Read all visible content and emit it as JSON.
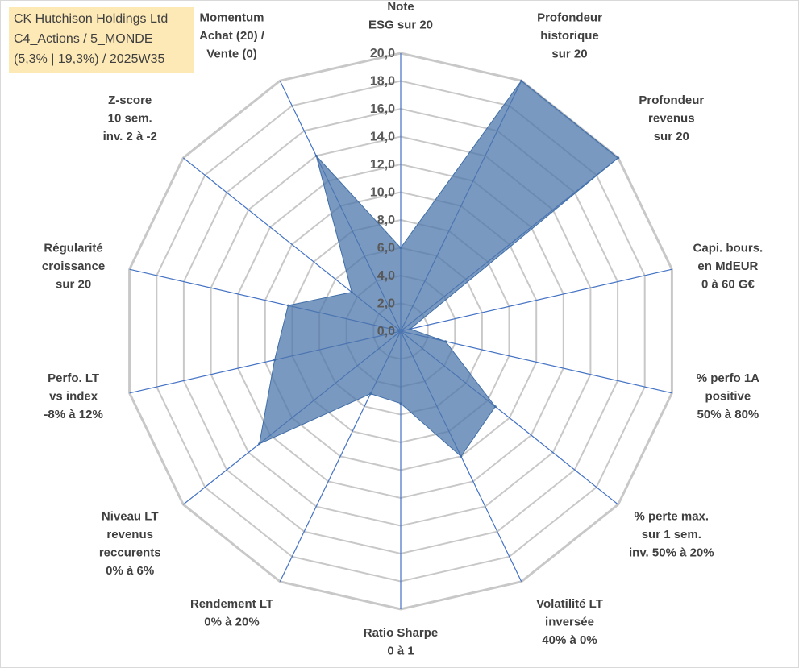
{
  "title": {
    "line1": "CK Hutchison Holdings Ltd",
    "line2": "C4_Actions / 5_MONDE",
    "line3": "(5,3% | 19,3%) / 2025W35"
  },
  "colors": {
    "fill": "#4e77ab",
    "fill_opacity": 0.75,
    "series_stroke": "#3f6ea8",
    "spoke": "#4472c4",
    "grid": "#c8c8c8",
    "title_bg": "#fde9b5"
  },
  "chart_data": {
    "type": "radar",
    "range": [
      0,
      20
    ],
    "tick_step": 2,
    "tick_labels": [
      "0,0",
      "2,0",
      "4,0",
      "6,0",
      "8,0",
      "10,0",
      "12,0",
      "14,0",
      "16,0",
      "18,0",
      "20,0"
    ],
    "axes": [
      {
        "label": [
          "Note",
          "ESG sur 20"
        ],
        "value": 6.0
      },
      {
        "label": [
          "Profondeur",
          "historique",
          "sur 20"
        ],
        "value": 20.0
      },
      {
        "label": [
          "Profondeur",
          "revenus",
          "sur 20"
        ],
        "value": 20.0
      },
      {
        "label": [
          "Capi. bours.",
          "en MdEUR",
          "0 à 60 G€"
        ],
        "value": 0.7
      },
      {
        "label": [
          "% perfo 1A",
          "positive",
          "50% à 80%"
        ],
        "value": 3.3
      },
      {
        "label": [
          "% perte max.",
          "sur 1 sem.",
          "inv. 50% à 20%"
        ],
        "value": 8.7
      },
      {
        "label": [
          "Volatilité LT",
          "inversée",
          "40% à 0%"
        ],
        "value": 10.0
      },
      {
        "label": [
          "Ratio Sharpe",
          "0 à 1"
        ],
        "value": 5.2
      },
      {
        "label": [
          "Rendement LT",
          "0% à 20%"
        ],
        "value": 5.0
      },
      {
        "label": [
          "Niveau LT",
          "revenus",
          "reccurents",
          "0% à 6%"
        ],
        "value": 13.0
      },
      {
        "label": [
          "Perfo. LT",
          "vs index",
          "-8% à 12%"
        ],
        "value": 9.3
      },
      {
        "label": [
          "Régularité",
          "croissance",
          "sur 20"
        ],
        "value": 8.3
      },
      {
        "label": [
          "Z-score",
          "10 sem.",
          "inv. 2 à -2"
        ],
        "value": 4.5
      },
      {
        "label": [
          "Momentum",
          "Achat (20) /",
          "Vente (0)"
        ],
        "value": 14.0
      }
    ]
  }
}
